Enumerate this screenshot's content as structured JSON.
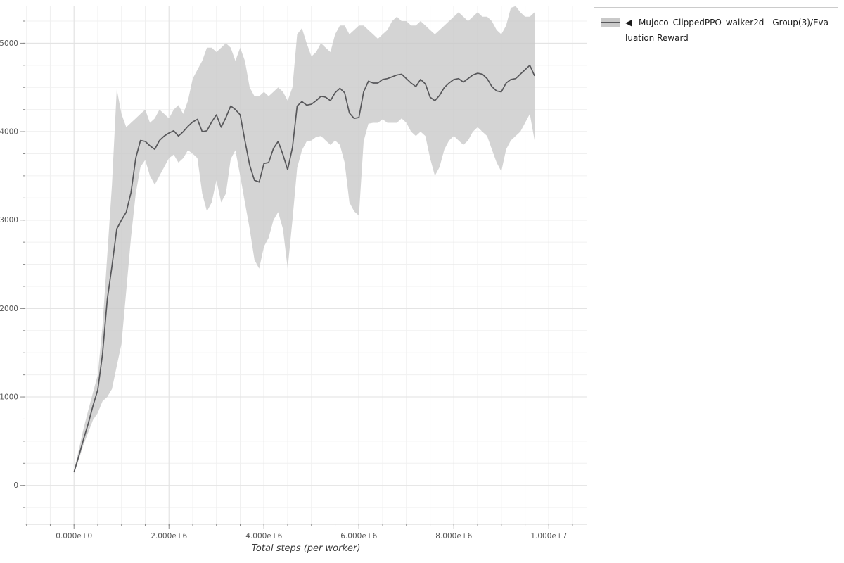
{
  "legend": {
    "position": "top_right",
    "items": [
      {
        "label": "◀ _Mujoco_ClippedPPO_walker2d - Group(3)/Evaluation Reward",
        "swatch_fill": "#c9c9c9",
        "swatch_line": "#57575a"
      }
    ]
  },
  "styles": {
    "background": "#ffffff",
    "grid_major": "#e2e2e2",
    "grid_minor": "#f0f0f0",
    "axis_line": "#d6d6d6",
    "tick_mark_color": "#8a8a8a",
    "tick_label_color": "#555555",
    "band": "#c9c9c9",
    "band_opacity": 0.8,
    "line": "#57575a",
    "legend_border": "#cbcbcb",
    "axis_title_color": "#3a3a3a"
  },
  "chart_data": {
    "type": "line",
    "title": "",
    "xlabel": "Total steps (per worker)",
    "ylabel": "",
    "grid": true,
    "legend_position": "top_right",
    "xlim": [
      -1040000,
      10810000
    ],
    "ylim": [
      -440,
      5425
    ],
    "x_minor_step": 500000,
    "y_minor_step": 250,
    "x_ticks": [
      {
        "v": 0,
        "label": "0.000e+0"
      },
      {
        "v": 2000000,
        "label": "2.000e+6"
      },
      {
        "v": 4000000,
        "label": "4.000e+6"
      },
      {
        "v": 6000000,
        "label": "6.000e+6"
      },
      {
        "v": 8000000,
        "label": "8.000e+6"
      },
      {
        "v": 10000000,
        "label": "1.000e+7"
      }
    ],
    "y_ticks": [
      {
        "v": 0,
        "label": "0"
      },
      {
        "v": 1000,
        "label": "1000"
      },
      {
        "v": 2000,
        "label": "2000"
      },
      {
        "v": 3000,
        "label": "3000"
      },
      {
        "v": 4000,
        "label": "4000"
      },
      {
        "v": 5000,
        "label": "5000"
      }
    ],
    "series": [
      {
        "name": "_Mujoco_ClippedPPO_walker2d - Group(3)/Evaluation Reward",
        "color": "#57575a",
        "band_color": "#c9c9c9",
        "x_in_millions": true,
        "x": [
          0.0,
          0.1,
          0.2,
          0.3,
          0.4,
          0.5,
          0.6,
          0.7,
          0.8,
          0.9,
          1.0,
          1.1,
          1.2,
          1.3,
          1.4,
          1.5,
          1.6,
          1.7,
          1.8,
          1.9,
          2.0,
          2.1,
          2.2,
          2.3,
          2.4,
          2.5,
          2.6,
          2.7,
          2.8,
          2.9,
          3.0,
          3.1,
          3.2,
          3.3,
          3.4,
          3.5,
          3.6,
          3.7,
          3.8,
          3.9,
          4.0,
          4.1,
          4.2,
          4.3,
          4.4,
          4.5,
          4.6,
          4.7,
          4.8,
          4.9,
          5.0,
          5.1,
          5.2,
          5.3,
          5.4,
          5.5,
          5.6,
          5.7,
          5.8,
          5.9,
          6.0,
          6.1,
          6.2,
          6.3,
          6.4,
          6.5,
          6.6,
          6.7,
          6.8,
          6.9,
          7.0,
          7.1,
          7.2,
          7.3,
          7.4,
          7.5,
          7.6,
          7.7,
          7.8,
          7.9,
          8.0,
          8.1,
          8.2,
          8.3,
          8.4,
          8.5,
          8.6,
          8.7,
          8.8,
          8.9,
          9.0,
          9.1,
          9.2,
          9.3,
          9.4,
          9.5,
          9.6,
          9.7
        ],
        "mean": [
          150,
          330,
          520,
          700,
          900,
          1080,
          1480,
          2100,
          2480,
          2900,
          3000,
          3090,
          3310,
          3700,
          3900,
          3890,
          3840,
          3800,
          3900,
          3950,
          3985,
          4010,
          3950,
          4000,
          4060,
          4110,
          4140,
          4000,
          4010,
          4110,
          4190,
          4050,
          4160,
          4290,
          4250,
          4190,
          3900,
          3620,
          3450,
          3430,
          3640,
          3650,
          3810,
          3890,
          3740,
          3570,
          3820,
          4290,
          4340,
          4300,
          4310,
          4350,
          4400,
          4390,
          4350,
          4440,
          4490,
          4440,
          4210,
          4150,
          4160,
          4450,
          4570,
          4550,
          4550,
          4590,
          4600,
          4620,
          4640,
          4650,
          4600,
          4550,
          4510,
          4590,
          4540,
          4390,
          4350,
          4410,
          4500,
          4550,
          4590,
          4600,
          4560,
          4600,
          4640,
          4660,
          4650,
          4600,
          4510,
          4460,
          4450,
          4550,
          4590,
          4600,
          4650,
          4700,
          4750,
          4630
        ],
        "lower": [
          130,
          290,
          460,
          600,
          740,
          820,
          950,
          1000,
          1090,
          1350,
          1600,
          2200,
          2800,
          3300,
          3600,
          3680,
          3500,
          3400,
          3500,
          3600,
          3700,
          3740,
          3650,
          3700,
          3790,
          3750,
          3700,
          3300,
          3100,
          3200,
          3450,
          3200,
          3300,
          3690,
          3790,
          3500,
          3200,
          2900,
          2550,
          2450,
          2700,
          2800,
          3000,
          3090,
          2900,
          2450,
          3000,
          3590,
          3790,
          3890,
          3900,
          3940,
          3950,
          3900,
          3850,
          3900,
          3850,
          3650,
          3200,
          3100,
          3050,
          3890,
          4090,
          4100,
          4100,
          4140,
          4100,
          4100,
          4100,
          4150,
          4100,
          4000,
          3950,
          4000,
          3950,
          3700,
          3500,
          3600,
          3800,
          3900,
          3950,
          3900,
          3850,
          3900,
          4000,
          4050,
          4000,
          3950,
          3800,
          3650,
          3550,
          3800,
          3900,
          3950,
          4000,
          4100,
          4200,
          3900
        ],
        "upper": [
          170,
          400,
          640,
          850,
          1050,
          1250,
          1800,
          2600,
          3400,
          4480,
          4200,
          4050,
          4100,
          4150,
          4200,
          4250,
          4100,
          4150,
          4250,
          4200,
          4150,
          4250,
          4300,
          4200,
          4350,
          4600,
          4700,
          4800,
          4950,
          4950,
          4900,
          4950,
          5000,
          4950,
          4800,
          4950,
          4800,
          4500,
          4400,
          4400,
          4450,
          4400,
          4450,
          4500,
          4450,
          4350,
          4500,
          5100,
          5170,
          5000,
          4850,
          4900,
          5000,
          4950,
          4900,
          5100,
          5200,
          5200,
          5100,
          5150,
          5200,
          5200,
          5150,
          5100,
          5050,
          5100,
          5150,
          5250,
          5300,
          5250,
          5250,
          5200,
          5200,
          5250,
          5200,
          5150,
          5100,
          5150,
          5200,
          5250,
          5300,
          5350,
          5300,
          5250,
          5300,
          5350,
          5300,
          5300,
          5250,
          5150,
          5100,
          5200,
          5400,
          5420,
          5350,
          5300,
          5300,
          5350
        ]
      }
    ]
  }
}
